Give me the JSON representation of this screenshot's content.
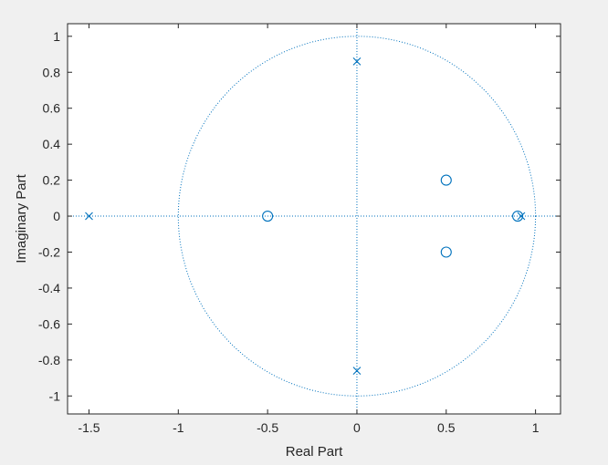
{
  "figure": {
    "background_color": "#f0f0f0",
    "axes_background": "#ffffff",
    "axis_color": "#262626",
    "series_color": "#0072bd"
  },
  "chart_data": {
    "type": "scatter",
    "title": "",
    "xlabel": "Real Part",
    "ylabel": "Imaginary Part",
    "xlim": [
      -1.62,
      1.14
    ],
    "ylim": [
      -1.1,
      1.07
    ],
    "grid": false,
    "legend": "none",
    "x_ticks": [
      -1.5,
      -1,
      -0.5,
      0,
      0.5,
      1
    ],
    "x_tick_labels": [
      "-1.5",
      "-1",
      "-0.5",
      "0",
      "0.5",
      "1"
    ],
    "y_ticks": [
      1,
      0.8,
      0.6,
      0.4,
      0.2,
      0,
      -0.2,
      -0.4,
      -0.6,
      -0.8,
      -1
    ],
    "y_tick_labels": [
      "1",
      "0.8",
      "0.6",
      "0.4",
      "0.2",
      "0",
      "-0.2",
      "-0.4",
      "-0.6",
      "-0.8",
      "-1"
    ],
    "unit_circle": {
      "center": [
        0,
        0
      ],
      "radius": 1,
      "style": "dotted"
    },
    "reference_lines": [
      {
        "orientation": "horizontal",
        "value": 0,
        "style": "dotted"
      },
      {
        "orientation": "vertical",
        "value": 0,
        "style": "dotted"
      }
    ],
    "series": [
      {
        "marker": "o",
        "points": [
          {
            "x": -0.5,
            "y": 0
          },
          {
            "x": 0.5,
            "y": 0.2
          },
          {
            "x": 0.5,
            "y": -0.2
          },
          {
            "x": 0.9,
            "y": 0
          }
        ]
      },
      {
        "marker": "x",
        "points": [
          {
            "x": -1.5,
            "y": 0
          },
          {
            "x": 0,
            "y": 0.86
          },
          {
            "x": 0,
            "y": -0.86
          },
          {
            "x": 0.92,
            "y": 0
          }
        ]
      }
    ]
  }
}
